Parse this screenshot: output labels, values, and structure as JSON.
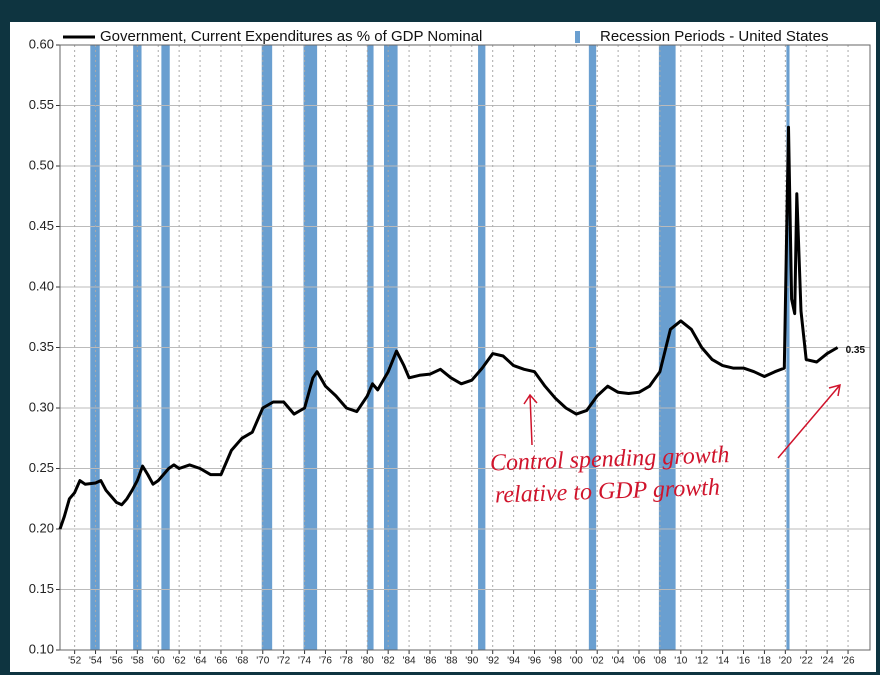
{
  "chart_data": {
    "type": "line",
    "legend_position": "top",
    "grid": true,
    "xlim": [
      1950.6,
      2028.1
    ],
    "ylim": [
      0.1,
      0.6
    ],
    "yticks": [
      {
        "value": 0.1,
        "label": "0.10"
      },
      {
        "value": 0.15,
        "label": "0.15"
      },
      {
        "value": 0.2,
        "label": "0.20"
      },
      {
        "value": 0.25,
        "label": "0.25"
      },
      {
        "value": 0.3,
        "label": "0.30"
      },
      {
        "value": 0.35,
        "label": "0.35"
      },
      {
        "value": 0.4,
        "label": "0.40"
      },
      {
        "value": 0.45,
        "label": "0.45"
      },
      {
        "value": 0.5,
        "label": "0.50"
      },
      {
        "value": 0.55,
        "label": "0.55"
      },
      {
        "value": 0.6,
        "label": "0.60"
      }
    ],
    "xticks": [
      {
        "value": 1952,
        "label": "'52"
      },
      {
        "value": 1954,
        "label": "'54"
      },
      {
        "value": 1956,
        "label": "'56"
      },
      {
        "value": 1958,
        "label": "'58"
      },
      {
        "value": 1960,
        "label": "'60"
      },
      {
        "value": 1962,
        "label": "'62"
      },
      {
        "value": 1964,
        "label": "'64"
      },
      {
        "value": 1966,
        "label": "'66"
      },
      {
        "value": 1968,
        "label": "'68"
      },
      {
        "value": 1970,
        "label": "'70"
      },
      {
        "value": 1972,
        "label": "'72"
      },
      {
        "value": 1974,
        "label": "'74"
      },
      {
        "value": 1976,
        "label": "'76"
      },
      {
        "value": 1978,
        "label": "'78"
      },
      {
        "value": 1980,
        "label": "'80"
      },
      {
        "value": 1982,
        "label": "'82"
      },
      {
        "value": 1984,
        "label": "'84"
      },
      {
        "value": 1986,
        "label": "'86"
      },
      {
        "value": 1988,
        "label": "'88"
      },
      {
        "value": 1990,
        "label": "'90"
      },
      {
        "value": 1992,
        "label": "'92"
      },
      {
        "value": 1994,
        "label": "'94"
      },
      {
        "value": 1996,
        "label": "'96"
      },
      {
        "value": 1998,
        "label": "'98"
      },
      {
        "value": 2000,
        "label": "'00"
      },
      {
        "value": 2002,
        "label": "'02"
      },
      {
        "value": 2004,
        "label": "'04"
      },
      {
        "value": 2006,
        "label": "'06"
      },
      {
        "value": 2008,
        "label": "'08"
      },
      {
        "value": 2010,
        "label": "'10"
      },
      {
        "value": 2012,
        "label": "'12"
      },
      {
        "value": 2014,
        "label": "'14"
      },
      {
        "value": 2016,
        "label": "'16"
      },
      {
        "value": 2018,
        "label": "'18"
      },
      {
        "value": 2020,
        "label": "'20"
      },
      {
        "value": 2022,
        "label": "'22"
      },
      {
        "value": 2024,
        "label": "'24"
      },
      {
        "value": 2026,
        "label": "'26"
      }
    ],
    "series": [
      {
        "name": "Government, Current Expenditures  as % of  GDP Nominal",
        "color": "#000000",
        "x": [
          1950.6,
          1951,
          1951.5,
          1952,
          1952.5,
          1953,
          1954,
          1954.5,
          1955,
          1956,
          1956.5,
          1957,
          1957.5,
          1958,
          1958.5,
          1959,
          1959.5,
          1960,
          1961,
          1961.5,
          1962,
          1963,
          1964,
          1965,
          1966,
          1967,
          1968,
          1969,
          1970,
          1971,
          1972,
          1973,
          1974,
          1974.8,
          1975.2,
          1976,
          1977,
          1978,
          1979,
          1980,
          1980.5,
          1981,
          1982,
          1982.8,
          1983.5,
          1984,
          1985,
          1986,
          1987,
          1988,
          1989,
          1990,
          1991,
          1992,
          1993,
          1994,
          1995,
          1996,
          1997,
          1998,
          1999,
          2000,
          2001,
          2002,
          2003,
          2004,
          2005,
          2006,
          2007,
          2008,
          2009,
          2010,
          2011,
          2012,
          2013,
          2014,
          2015,
          2016,
          2017,
          2018,
          2019,
          2019.9,
          2020.3,
          2020.6,
          2020.9,
          2021.1,
          2021.5,
          2022,
          2023,
          2024,
          2025
        ],
        "values": [
          0.2,
          0.21,
          0.225,
          0.23,
          0.24,
          0.237,
          0.238,
          0.24,
          0.232,
          0.222,
          0.22,
          0.225,
          0.232,
          0.24,
          0.252,
          0.245,
          0.237,
          0.24,
          0.25,
          0.253,
          0.25,
          0.253,
          0.25,
          0.245,
          0.245,
          0.265,
          0.275,
          0.28,
          0.3,
          0.305,
          0.305,
          0.295,
          0.3,
          0.325,
          0.33,
          0.318,
          0.31,
          0.3,
          0.297,
          0.31,
          0.32,
          0.315,
          0.33,
          0.347,
          0.335,
          0.325,
          0.327,
          0.328,
          0.332,
          0.325,
          0.32,
          0.323,
          0.333,
          0.345,
          0.343,
          0.335,
          0.332,
          0.33,
          0.318,
          0.308,
          0.3,
          0.295,
          0.298,
          0.31,
          0.318,
          0.313,
          0.312,
          0.313,
          0.318,
          0.33,
          0.365,
          0.372,
          0.365,
          0.35,
          0.34,
          0.335,
          0.333,
          0.333,
          0.33,
          0.326,
          0.33,
          0.333,
          0.532,
          0.39,
          0.378,
          0.477,
          0.38,
          0.34,
          0.338,
          0.345,
          0.35
        ]
      }
    ],
    "recessions": {
      "name": "Recession Periods - United States",
      "color": "#6a9fd0",
      "periods": [
        [
          1953.5,
          1954.4
        ],
        [
          1957.6,
          1958.4
        ],
        [
          1960.3,
          1961.1
        ],
        [
          1969.9,
          1970.9
        ],
        [
          1973.9,
          1975.2
        ],
        [
          1980.0,
          1980.6
        ],
        [
          1981.6,
          1982.9
        ],
        [
          1990.6,
          1991.3
        ],
        [
          2001.2,
          2001.9
        ],
        [
          2007.9,
          2009.5
        ],
        [
          2020.1,
          2020.4
        ]
      ]
    },
    "annotations": [
      "Control spending growth",
      "relative to GDP growth"
    ]
  }
}
